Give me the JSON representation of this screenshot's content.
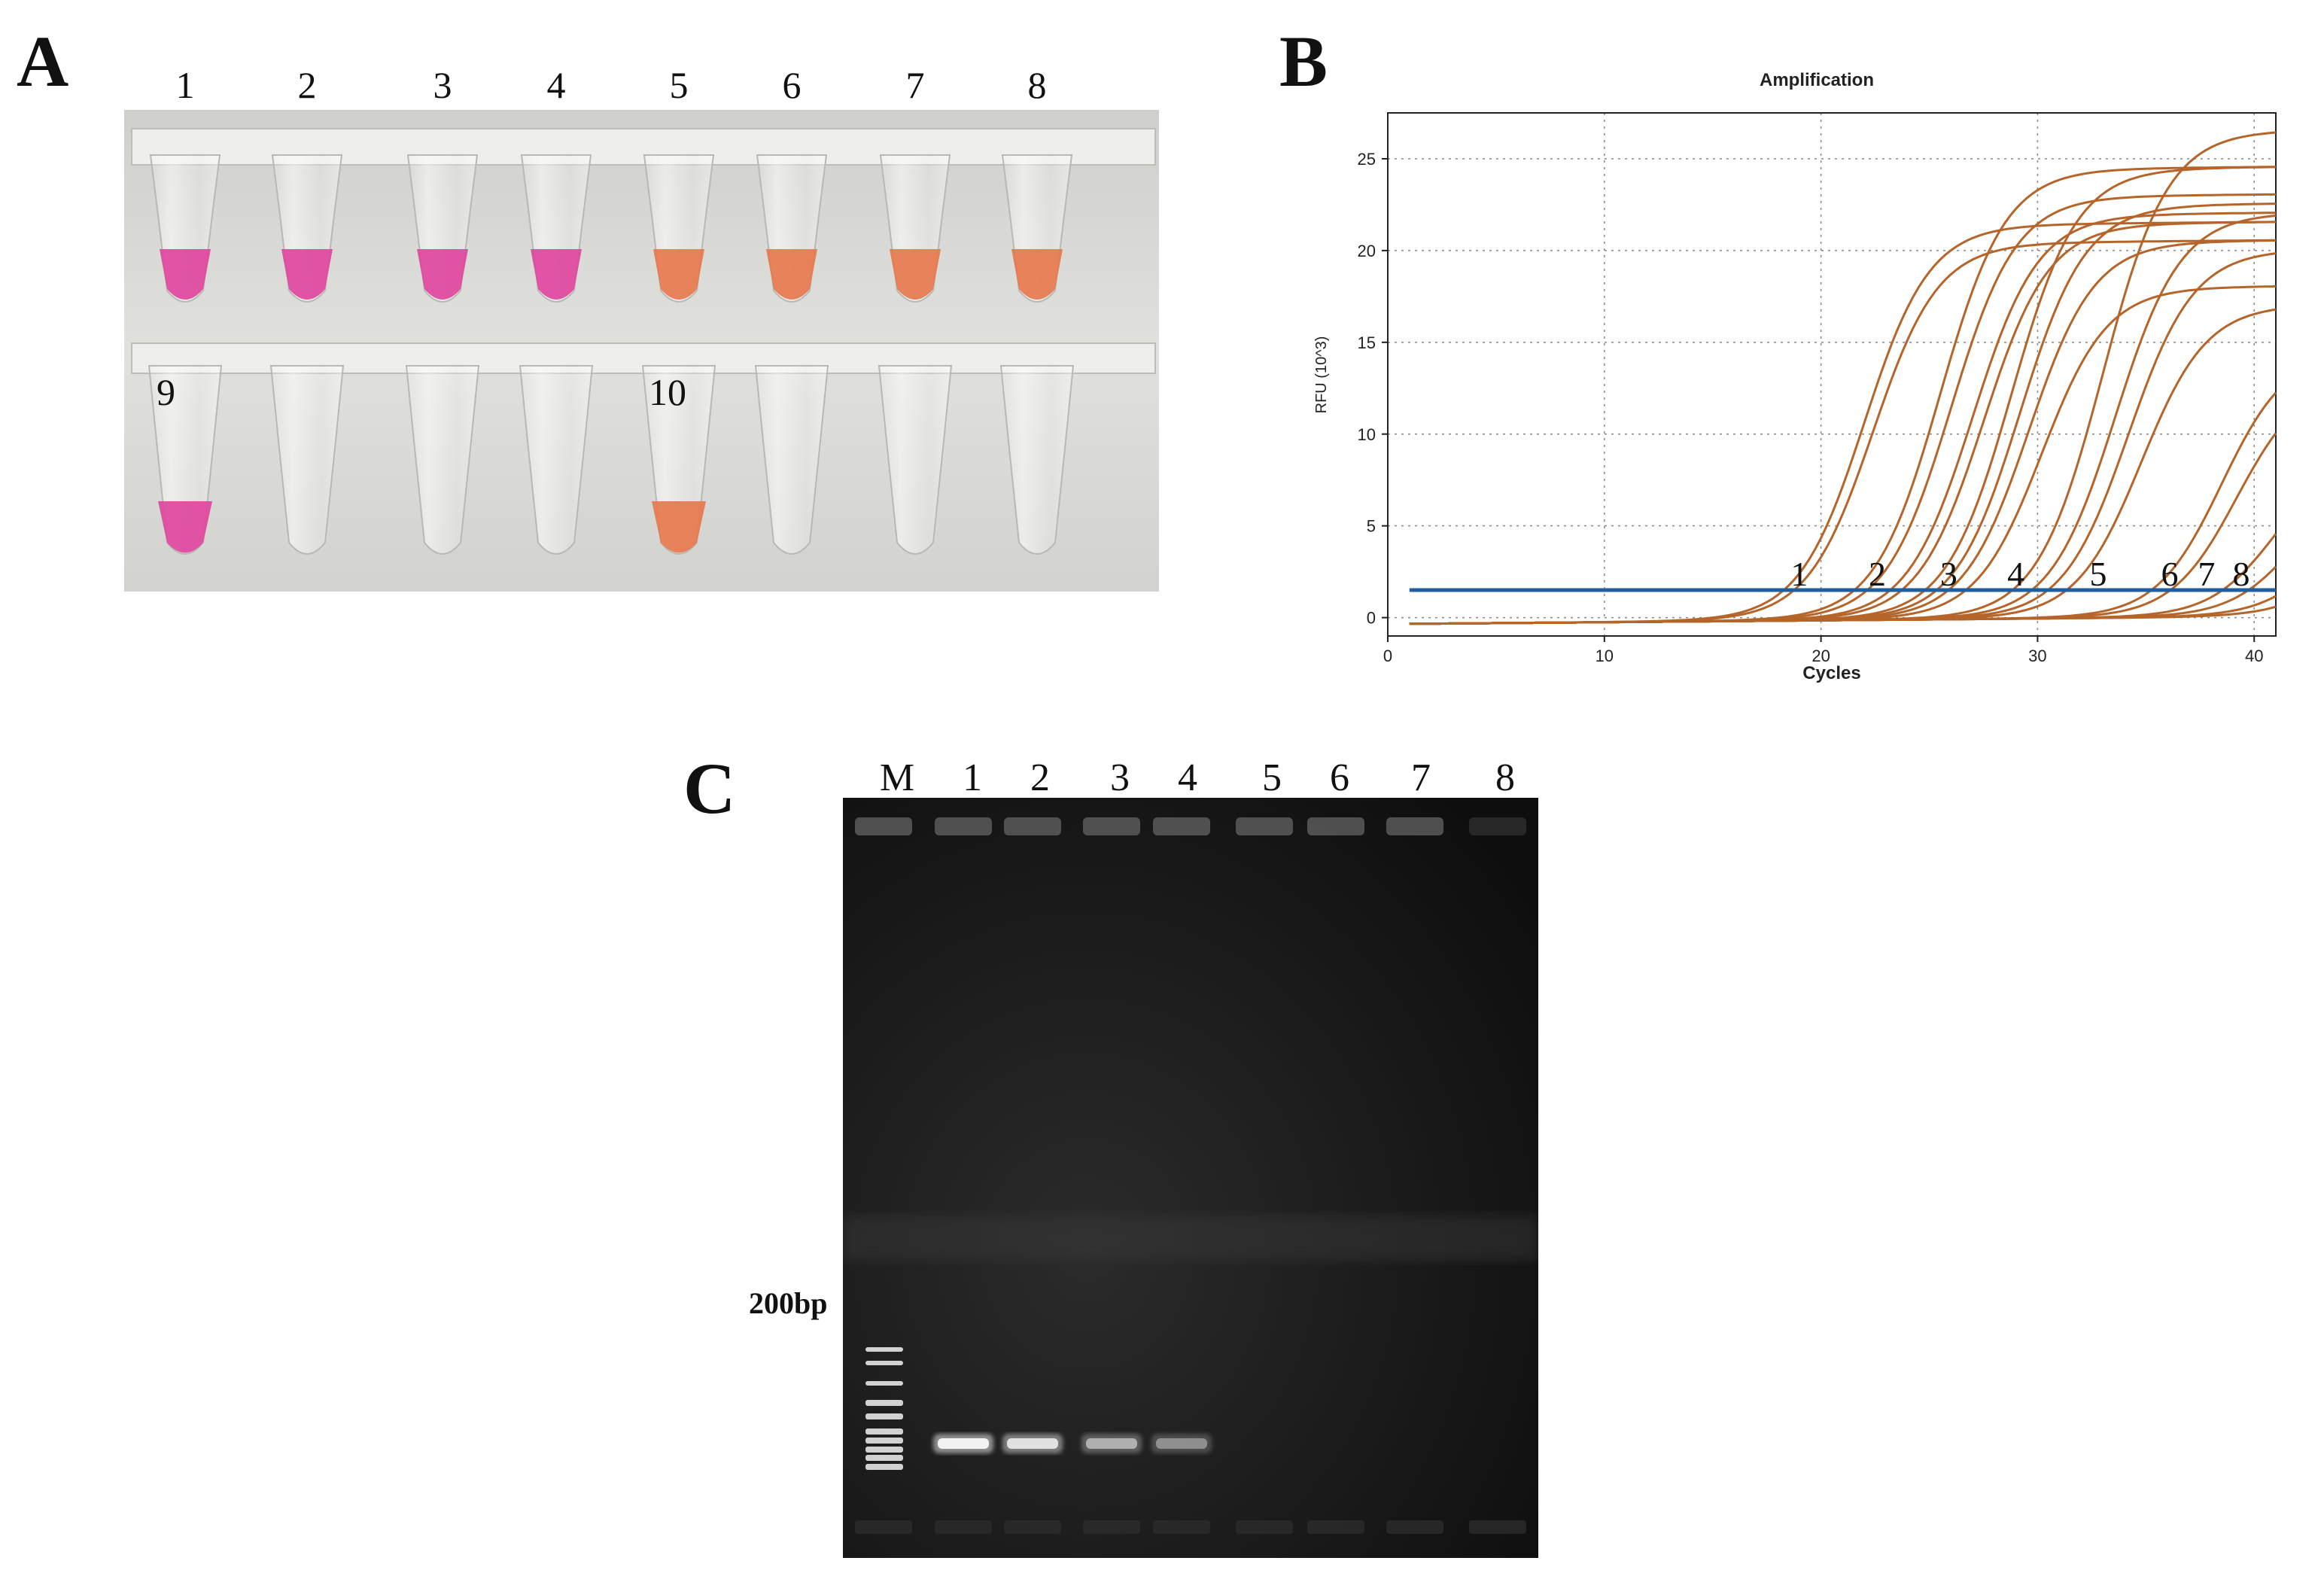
{
  "panels": {
    "a": {
      "letter": "A",
      "top_labels": [
        "1",
        "2",
        "3",
        "4",
        "5",
        "6",
        "7",
        "8"
      ],
      "bottom_labels": [
        "9",
        "10"
      ],
      "colors": {
        "positive": "#e0479e",
        "negative": "#e6784e",
        "tray": "#d9d9d6"
      }
    },
    "b": {
      "letter": "B"
    },
    "c": {
      "letter": "C",
      "lanes": [
        "M",
        "1",
        "2",
        "3",
        "4",
        "5",
        "6",
        "7",
        "8"
      ],
      "marker_label": "200bp"
    }
  },
  "chart_data": {
    "type": "line",
    "title": "Amplification",
    "xlabel": "Cycles",
    "ylabel": "RFU (10^3)",
    "xlim": [
      0,
      41
    ],
    "ylim": [
      -1,
      27.5
    ],
    "xticks": [
      "0",
      "10",
      "20",
      "30",
      "40"
    ],
    "yticks": [
      "0",
      "5",
      "10",
      "15",
      "20",
      "25"
    ],
    "grid": true,
    "threshold": 1.5,
    "threshold_color": "#1f5fa0",
    "curve_color": "#b5652a",
    "curve_labels": [
      {
        "text": "1",
        "x": 19.0
      },
      {
        "text": "2",
        "x": 22.6
      },
      {
        "text": "3",
        "x": 25.9
      },
      {
        "text": "4",
        "x": 29.0
      },
      {
        "text": "5",
        "x": 32.8
      },
      {
        "text": "6",
        "x": 36.1
      },
      {
        "text": "7",
        "x": 37.8
      },
      {
        "text": "8",
        "x": 39.4
      }
    ],
    "series": [
      {
        "midpoint": 22.0,
        "plateau": 21.5
      },
      {
        "midpoint": 22.4,
        "plateau": 20.5
      },
      {
        "midpoint": 25.5,
        "plateau": 24.5
      },
      {
        "midpoint": 26.0,
        "plateau": 23.0
      },
      {
        "midpoint": 27.0,
        "plateau": 22.0
      },
      {
        "midpoint": 27.5,
        "plateau": 21.5
      },
      {
        "midpoint": 28.8,
        "plateau": 24.5
      },
      {
        "midpoint": 29.2,
        "plateau": 22.5
      },
      {
        "midpoint": 29.6,
        "plateau": 20.5
      },
      {
        "midpoint": 30.2,
        "plateau": 18.0
      },
      {
        "midpoint": 33.0,
        "plateau": 26.5
      },
      {
        "midpoint": 33.6,
        "plateau": 22.0
      },
      {
        "midpoint": 34.2,
        "plateau": 20.0
      },
      {
        "midpoint": 34.8,
        "plateau": 17.0
      },
      {
        "midpoint": 38.5,
        "plateau": 14.5
      },
      {
        "midpoint": 39.2,
        "plateau": 13.0
      },
      {
        "midpoint": 41.0,
        "plateau": 9.0
      },
      {
        "midpoint": 42.0,
        "plateau": 8.0
      },
      {
        "midpoint": 43.5,
        "plateau": 7.0
      },
      {
        "midpoint": 44.5,
        "plateau": 6.0
      }
    ]
  }
}
